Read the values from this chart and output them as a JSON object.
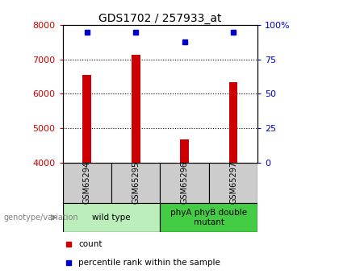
{
  "title": "GDS1702 / 257933_at",
  "samples": [
    "GSM65294",
    "GSM65295",
    "GSM65296",
    "GSM65297"
  ],
  "counts": [
    6550,
    7130,
    4680,
    6330
  ],
  "percentiles": [
    95,
    95,
    88,
    95
  ],
  "ylim_left": [
    4000,
    8000
  ],
  "ylim_right": [
    0,
    100
  ],
  "yticks_left": [
    4000,
    5000,
    6000,
    7000,
    8000
  ],
  "yticks_right": [
    0,
    25,
    50,
    75,
    100
  ],
  "bar_color": "#cc0000",
  "dot_color": "#0000cc",
  "groups": [
    {
      "label": "wild type",
      "samples": [
        0,
        1
      ],
      "color": "#bbeebb"
    },
    {
      "label": "phyA phyB double\nmutant",
      "samples": [
        2,
        3
      ],
      "color": "#44cc44"
    }
  ],
  "legend_items": [
    {
      "label": "count",
      "color": "#cc0000"
    },
    {
      "label": "percentile rank within the sample",
      "color": "#0000cc"
    }
  ],
  "genotype_label": "genotype/variation",
  "sample_box_color": "#cccccc",
  "left_label_color": "#cc0000",
  "right_label_color": "#0000cc"
}
